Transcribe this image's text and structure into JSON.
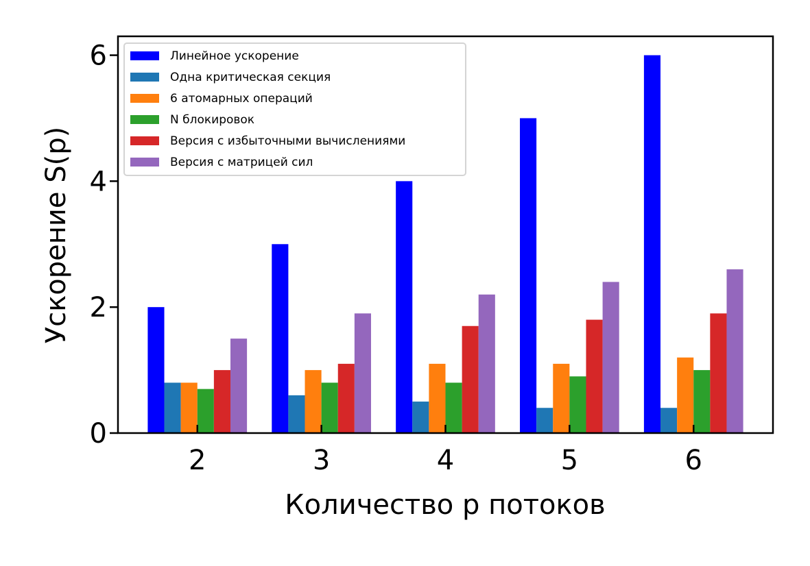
{
  "chart_data": {
    "type": "bar",
    "title": "",
    "xlabel": "Количество p потоков",
    "ylabel": "Ускорение S(p)",
    "categories": [
      "2",
      "3",
      "4",
      "5",
      "6"
    ],
    "ylim": [
      0,
      6.3
    ],
    "yticks": [
      0,
      2,
      4,
      6
    ],
    "grid": false,
    "legend_position": "top-left",
    "series": [
      {
        "name": "Линейное ускорение",
        "color": "#0000ff",
        "values": [
          2,
          3,
          4,
          5,
          6
        ]
      },
      {
        "name": "Одна критическая секция",
        "color": "#1f77b4",
        "values": [
          0.8,
          0.6,
          0.5,
          0.4,
          0.4
        ]
      },
      {
        "name": "6 атомарных операций",
        "color": "#ff7f0e",
        "values": [
          0.8,
          1.0,
          1.1,
          1.1,
          1.2
        ]
      },
      {
        "name": "N блокировок",
        "color": "#2ca02c",
        "values": [
          0.7,
          0.8,
          0.8,
          0.9,
          1.0
        ]
      },
      {
        "name": "Версия с избыточными вычислениями",
        "color": "#d62728",
        "values": [
          1.0,
          1.1,
          1.7,
          1.8,
          1.9
        ]
      },
      {
        "name": "Версия с матрицей сил",
        "color": "#9467bd",
        "values": [
          1.5,
          1.9,
          2.2,
          2.4,
          2.6
        ]
      }
    ]
  }
}
